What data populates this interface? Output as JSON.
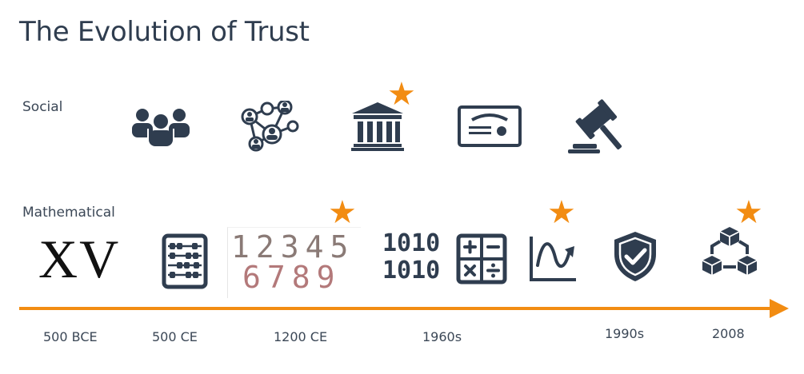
{
  "title": "The Evolution of Trust",
  "rows": {
    "social": "Social",
    "mathematical": "Mathematical"
  },
  "roman_numeral": "XV",
  "arabic_numerals": {
    "line1": "12345",
    "line2": "6789"
  },
  "binary": {
    "line1": "1010",
    "line2": "1010"
  },
  "years": [
    "500 BCE",
    "500 CE",
    "1200 CE",
    "1960s",
    "1990s",
    "2008"
  ],
  "icons": {
    "social": [
      "group-icon",
      "network-icon",
      "bank-icon",
      "certificate-icon",
      "gavel-icon"
    ],
    "mathematical": [
      "roman-numerals-icon",
      "abacus-icon",
      "arabic-numerals-icon",
      "binary-icon",
      "calculator-icon",
      "graph-icon",
      "shield-check-icon",
      "blockchain-icon"
    ]
  },
  "star_symbol": "★",
  "colors": {
    "accent": "#f28c12",
    "icon": "#2f3d4f",
    "text": "#3b4756"
  }
}
